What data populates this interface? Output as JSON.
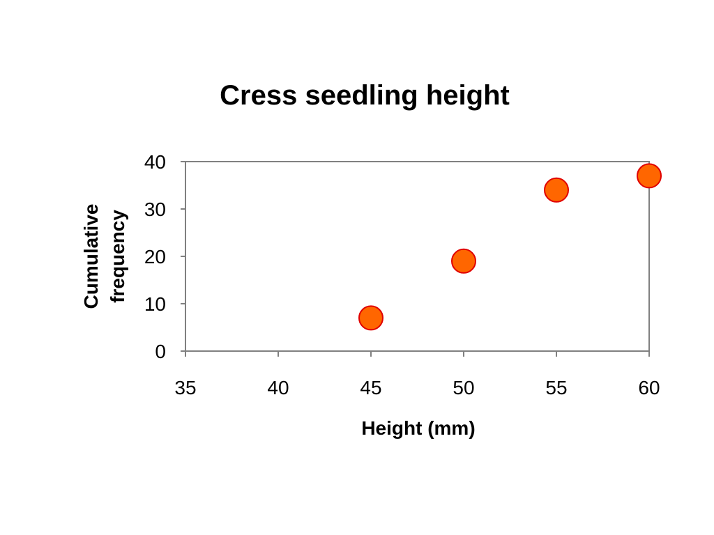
{
  "chart_data": {
    "type": "scatter",
    "title": "Cress seedling height",
    "xlabel": "Height (mm)",
    "ylabel_lines": [
      "Cumulative",
      "frequency"
    ],
    "xlim": [
      35,
      60
    ],
    "ylim": [
      0,
      40
    ],
    "xticks": [
      35,
      40,
      45,
      50,
      55,
      60
    ],
    "yticks": [
      0,
      10,
      20,
      30,
      40
    ],
    "grid": false,
    "legend": "none",
    "marker_fill": "#ff6600",
    "marker_stroke": "#e00000",
    "points": [
      {
        "x": 45,
        "y": 7
      },
      {
        "x": 50,
        "y": 19
      },
      {
        "x": 55,
        "y": 34
      },
      {
        "x": 60,
        "y": 37
      }
    ]
  }
}
